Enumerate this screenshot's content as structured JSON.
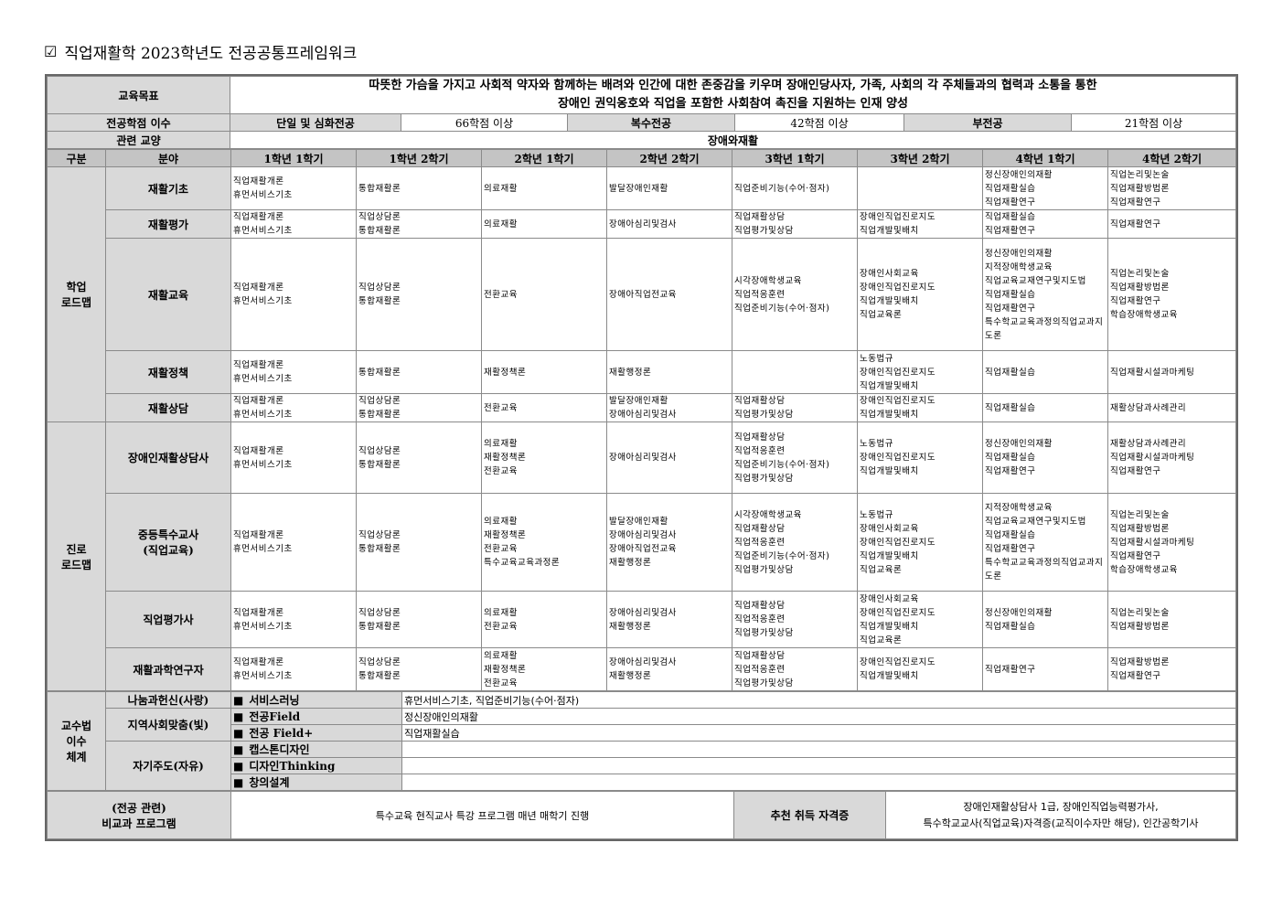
{
  "title": {
    "icon": "checkbox-icon",
    "text": "직업재활학 2023학년도 전공공통프레임워크"
  },
  "goal": {
    "label": "교육목표",
    "text": "따뜻한 가슴을 가지고 사회적 약자와 함께하는 배려와 인간에 대한 존중감을 키우며 장애인당사자, 가족, 사회의 각 주체들과의 협력과 소통을 통한\n장애인 권익옹호와 직업을 포함한 사회참여 촉진을 지원하는 인재 양성"
  },
  "credits": {
    "label": "전공학점 이수",
    "items": [
      {
        "name": "단일 및 심화전공",
        "value": "66학점 이상"
      },
      {
        "name": "복수전공",
        "value": "42학점 이상"
      },
      {
        "name": "부전공",
        "value": "21학점 이상"
      }
    ]
  },
  "liberal": {
    "label": "관련 교양",
    "value": "장애와재활"
  },
  "roadmap": {
    "headers": [
      "구분",
      "분야",
      "1학년 1학기",
      "1학년 2학기",
      "2학년 1학기",
      "2학년 2학기",
      "3학년 1학기",
      "3학년 2학기",
      "4학년 1학기",
      "4학년 2학기"
    ],
    "groups": [
      {
        "label": "학업\n로드맵",
        "rows": [
          {
            "field": "재활기초",
            "cells": [
              "직업재활개론\n휴먼서비스기초",
              "통합재활론",
              "의료재활",
              "발달장애인재활",
              "직업준비기능(수어·점자)",
              "",
              "정신장애인의재활\n직업재활실습\n직업재활연구",
              "직업논리및논술\n직업재활방법론\n직업재활연구"
            ]
          },
          {
            "field": "재활평가",
            "cells": [
              "직업재활개론\n휴먼서비스기초",
              "직업상담론\n통합재활론",
              "의료재활",
              "장애아심리및검사",
              "직업재활상담\n직업평가및상담",
              "장애인직업진로지도\n직업개발및배치",
              "직업재활실습\n직업재활연구",
              "직업재활연구"
            ]
          },
          {
            "field": "재활교육",
            "cells": [
              "직업재활개론\n휴먼서비스기초",
              "직업상담론\n통합재활론",
              "전환교육",
              "장애아직업전교육",
              "시각장애학생교육\n직업적응훈련\n직업준비기능(수어·점자)",
              "장애인사회교육\n장애인직업진로지도\n직업개발및배치\n직업교육론",
              "정신장애인의재활\n지적장애학생교육\n직업교육교재연구및지도법\n직업재활실습\n직업재활연구\n특수학교교육과정의직업교과지도론",
              "직업논리및논술\n직업재활방법론\n직업재활연구\n학습장애학생교육"
            ]
          },
          {
            "field": "재활정책",
            "cells": [
              "직업재활개론\n휴먼서비스기초",
              "통합재활론",
              "재활정책론",
              "재활행정론",
              "",
              "노동법규\n장애인직업진로지도\n직업개발및배치",
              "직업재활실습",
              "직업재활시설과마케팅"
            ]
          },
          {
            "field": "재활상담",
            "cells": [
              "직업재활개론\n휴먼서비스기초",
              "직업상담론\n통합재활론",
              "전환교육",
              "발달장애인재활\n장애아심리및검사",
              "직업재활상담\n직업평가및상담",
              "장애인직업진로지도\n직업개발및배치",
              "직업재활실습",
              "재활상담과사례관리"
            ]
          }
        ]
      },
      {
        "label": "진로\n로드맵",
        "rows": [
          {
            "field": "장애인재활상담사",
            "cells": [
              "직업재활개론\n휴먼서비스기초",
              "직업상담론\n통합재활론",
              "의료재활\n재활정책론\n전환교육",
              "장애아심리및검사",
              "직업재활상담\n직업적응훈련\n직업준비기능(수어·점자)\n직업평가및상담",
              "노동법규\n장애인직업진로지도\n직업개발및배치",
              "정신장애인의재활\n직업재활실습\n직업재활연구",
              "재활상담과사례관리\n직업재활시설과마케팅\n직업재활연구"
            ]
          },
          {
            "field": "중등특수교사\n(직업교육)",
            "cells": [
              "직업재활개론\n휴먼서비스기초",
              "직업상담론\n통합재활론",
              "의료재활\n재활정책론\n전환교육\n특수교육교육과정론",
              "발달장애인재활\n장애아심리및검사\n장애아직업전교육\n재활행정론",
              "시각장애학생교육\n직업재활상담\n직업적응훈련\n직업준비기능(수어·점자)\n직업평가및상담",
              "노동법규\n장애인사회교육\n장애인직업진로지도\n직업개발및배치\n직업교육론",
              "지적장애학생교육\n직업교육교재연구및지도법\n직업재활실습\n직업재활연구\n특수학교교육과정의직업교과지도론",
              "직업논리및논술\n직업재활방법론\n직업재활시설과마케팅\n직업재활연구\n학습장애학생교육"
            ]
          },
          {
            "field": "직업평가사",
            "cells": [
              "직업재활개론\n휴먼서비스기초",
              "직업상담론\n통합재활론",
              "의료재활\n전환교육",
              "장애아심리및검사\n재활행정론",
              "직업재활상담\n직업적응훈련\n직업평가및상담",
              "장애인사회교육\n장애인직업진로지도\n직업개발및배치\n직업교육론",
              "정신장애인의재활\n직업재활실습",
              "직업논리및논술\n직업재활방법론"
            ]
          },
          {
            "field": "재활과학연구자",
            "cells": [
              "직업재활개론\n휴먼서비스기초",
              "직업상담론\n통합재활론",
              "의료재활\n재활정책론\n전환교육",
              "장애아심리및검사\n재활행정론",
              "직업재활상담\n직업적응훈련\n직업평가및상담",
              "장애인직업진로지도\n직업개발및배치",
              "직업재활연구",
              "직업재활방법론\n직업재활연구"
            ]
          }
        ]
      }
    ]
  },
  "teaching": {
    "label": "교수법\n이수\n체계",
    "categories": [
      {
        "name": "나눔과헌신(사랑)",
        "items": [
          {
            "name": "서비스러닝",
            "value": "휴먼서비스기초, 직업준비기능(수어·점자)"
          }
        ]
      },
      {
        "name": "지역사회맞춤(빛)",
        "items": [
          {
            "name": "전공Field",
            "value": "정신장애인의재활"
          },
          {
            "name": "전공 Field+",
            "value": "직업재활실습"
          }
        ]
      },
      {
        "name": "자기주도(자유)",
        "items": [
          {
            "name": "캡스톤디자인",
            "value": ""
          },
          {
            "name": "디자인Thinking",
            "value": ""
          },
          {
            "name": "창의설계",
            "value": ""
          }
        ]
      }
    ],
    "bullet": "■"
  },
  "extra": {
    "label": "(전공 관련)\n비교과 프로그램",
    "text": "특수교육 현직교사 특강 프로그램 매년 매학기 진행",
    "cert_label": "추천 취득 자격증",
    "cert_text": "장애인재활상담사 1급, 장애인직업능력평가사,\n특수학교교사(직업교육)자격증(교직이수자만 해당), 인간공학기사"
  },
  "colors": {
    "label_bg": "#d9d9d9",
    "header_bg": "#c4c4c4",
    "border": "#8a8a8a"
  }
}
